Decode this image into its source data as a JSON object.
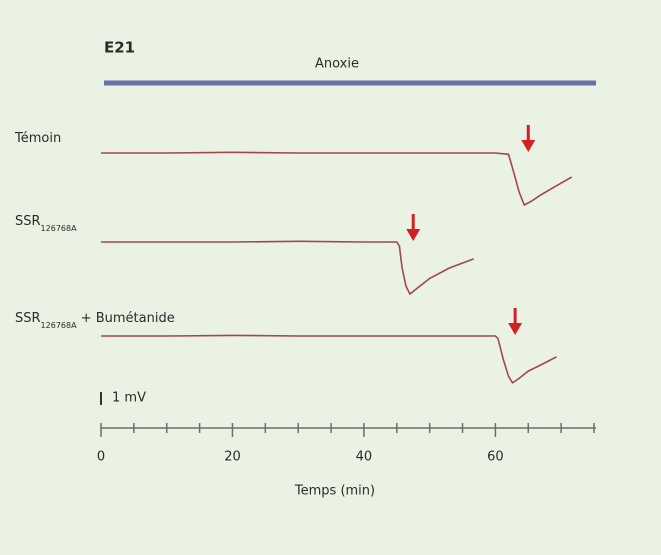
{
  "chart_data": {
    "type": "line",
    "panel_label": "E21",
    "anoxia": {
      "label": "Anoxie",
      "start": 0,
      "end": 75,
      "color": "#6870a8"
    },
    "xlabel": "Temps (min)",
    "xlim": [
      0,
      75
    ],
    "xticks": [
      0,
      20,
      40,
      60
    ],
    "xticks_minor": [
      5,
      10,
      15,
      25,
      30,
      35,
      45,
      50,
      55,
      65,
      70,
      75
    ],
    "scale_bar": {
      "value": 1,
      "label": "1 mV"
    },
    "arrow_color": "#d32027",
    "series": [
      {
        "name": "Témoin",
        "color": "#a3474d",
        "arrow_x": 65,
        "x": [
          0,
          10,
          20,
          30,
          40,
          50,
          60,
          62,
          62.8,
          63.6,
          64.4,
          65.5,
          67,
          69,
          71.6
        ],
        "values": [
          0,
          0,
          0.05,
          0,
          0,
          0,
          0,
          -0.1,
          -1.5,
          -3.0,
          -4.0,
          -3.7,
          -3.2,
          -2.6,
          -1.85
        ]
      },
      {
        "name": "SSR",
        "name_subscript": "126768A",
        "color": "#a3474d",
        "arrow_x": 47.5,
        "x": [
          0,
          10,
          20,
          30,
          40,
          45,
          45.4,
          45.8,
          46.4,
          47,
          48,
          50,
          53,
          56.7
        ],
        "values": [
          0,
          0,
          0,
          0.05,
          0,
          0,
          -0.3,
          -2.0,
          -3.4,
          -4.0,
          -3.6,
          -2.8,
          -2.0,
          -1.3
        ]
      },
      {
        "name": "SSR",
        "name_subscript": "126768A",
        "name_suffix": " + Bumétanide",
        "color": "#a3474d",
        "arrow_x": 63,
        "x": [
          0,
          10,
          20,
          30,
          40,
          50,
          60,
          60.4,
          61.2,
          62,
          62.6,
          63.5,
          65,
          67,
          69.3
        ],
        "values": [
          0,
          0,
          0.05,
          0,
          0,
          0,
          0,
          -0.2,
          -1.8,
          -3.1,
          -3.6,
          -3.3,
          -2.7,
          -2.2,
          -1.6
        ]
      }
    ]
  }
}
